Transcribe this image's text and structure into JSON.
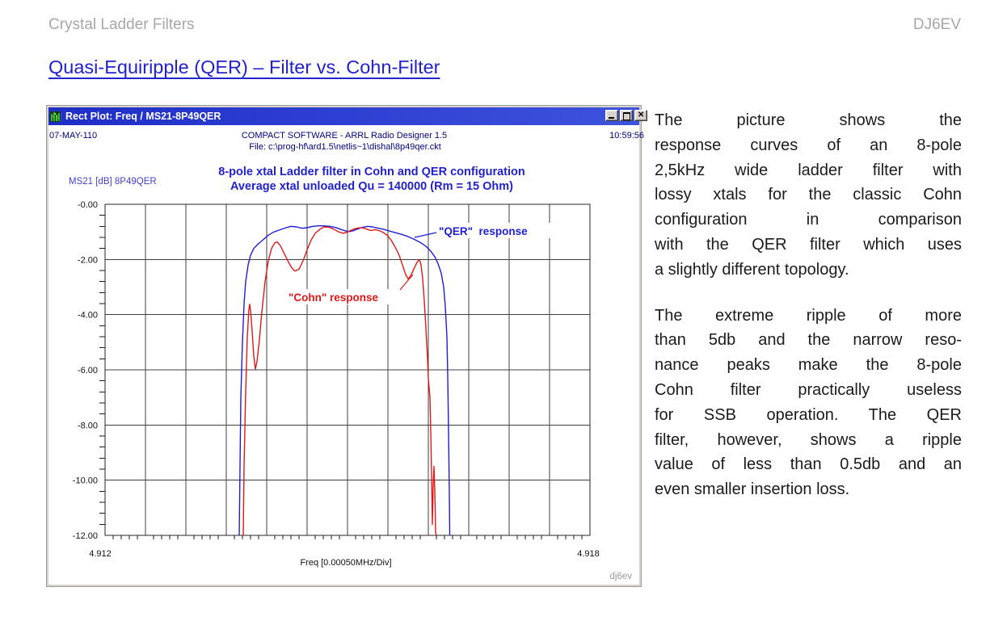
{
  "page": {
    "header_left": "Crystal Ladder Filters",
    "header_right": "DJ6EV",
    "heading": "Quasi-Equiripple (QER) – Filter vs. Cohn-Filter"
  },
  "app_window": {
    "title": "Rect Plot: Freq / MS21-8P49QER",
    "buttons": {
      "minimize": "minimize",
      "maximize": "maximize",
      "close": "close"
    },
    "header": {
      "date": "07-MAY-110",
      "software": "COMPACT SOFTWARE - ARRL Radio Designer 1.5",
      "file": "File: c:\\prog-hf\\ard1.5\\netlis~1\\dishal\\8p49qer.ckt",
      "time": "10:59:56"
    },
    "trace_label": "MS21 [dB] 8P49QER",
    "watermark": "dj6ev"
  },
  "chart_data": {
    "type": "line",
    "title": "8-pole xtal Ladder filter in Cohn and QER configuration",
    "subtitle": "Average xtal unloaded Qu = 140000 (Rm = 15 Ohm)",
    "xlabel": "Freq [0.00050MHz/Div]",
    "ylabel": "MS21 [dB]",
    "xlim": [
      4.912,
      4.918
    ],
    "ylim": [
      -12,
      0
    ],
    "x_divisions": 12,
    "y_divisions": 6,
    "minor_per_division": 5,
    "grid": true,
    "x_tick_labels": [
      "4.912",
      "4.918"
    ],
    "y_tick_labels": [
      "-0.00",
      "-2.00",
      "-4.00",
      "-6.00",
      "-8.00",
      "-10.00",
      "-12.00"
    ],
    "annotations": [
      {
        "text": "\"QER\"  response",
        "color": "#1e1ed2"
      },
      {
        "text": "\"Cohn\" response",
        "color": "#e01818"
      }
    ],
    "series": [
      {
        "name": "QER response",
        "color": "#1e1ed2",
        "points": [
          [
            4.91366,
            -12
          ],
          [
            4.91367,
            -9.5
          ],
          [
            4.91368,
            -7
          ],
          [
            4.9137,
            -5
          ],
          [
            4.91372,
            -3.6
          ],
          [
            4.91374,
            -2.8
          ],
          [
            4.91377,
            -2.2
          ],
          [
            4.9138,
            -1.85
          ],
          [
            4.91384,
            -1.6
          ],
          [
            4.91389,
            -1.45
          ],
          [
            4.91395,
            -1.3
          ],
          [
            4.91402,
            -1.12
          ],
          [
            4.91409,
            -1.0
          ],
          [
            4.91417,
            -0.92
          ],
          [
            4.91424,
            -0.85
          ],
          [
            4.9143,
            -0.8
          ],
          [
            4.91437,
            -0.82
          ],
          [
            4.91444,
            -0.87
          ],
          [
            4.9145,
            -0.85
          ],
          [
            4.91457,
            -0.8
          ],
          [
            4.91464,
            -0.78
          ],
          [
            4.91471,
            -0.78
          ],
          [
            4.91478,
            -0.8
          ],
          [
            4.91485,
            -0.84
          ],
          [
            4.91491,
            -0.9
          ],
          [
            4.91497,
            -0.96
          ],
          [
            4.91502,
            -0.99
          ],
          [
            4.91507,
            -0.96
          ],
          [
            4.91513,
            -0.89
          ],
          [
            4.91519,
            -0.83
          ],
          [
            4.91525,
            -0.8
          ],
          [
            4.91531,
            -0.82
          ],
          [
            4.91537,
            -0.86
          ],
          [
            4.91544,
            -0.9
          ],
          [
            4.91551,
            -0.96
          ],
          [
            4.91558,
            -1.02
          ],
          [
            4.91566,
            -1.08
          ],
          [
            4.91574,
            -1.16
          ],
          [
            4.91582,
            -1.26
          ],
          [
            4.9159,
            -1.38
          ],
          [
            4.91597,
            -1.52
          ],
          [
            4.91603,
            -1.7
          ],
          [
            4.91608,
            -1.9
          ],
          [
            4.91612,
            -2.15
          ],
          [
            4.91616,
            -2.5
          ],
          [
            4.91619,
            -3.0
          ],
          [
            4.91621,
            -3.7
          ],
          [
            4.91623,
            -4.8
          ],
          [
            4.91624,
            -6.2
          ],
          [
            4.91625,
            -8.2
          ],
          [
            4.91626,
            -10.5
          ],
          [
            4.916265,
            -12
          ]
        ]
      },
      {
        "name": "Cohn response",
        "color": "#e01818",
        "points": [
          [
            4.91371,
            -12
          ],
          [
            4.91372,
            -9.5
          ],
          [
            4.91374,
            -6.8
          ],
          [
            4.91376,
            -4.8
          ],
          [
            4.91378,
            -3.8
          ],
          [
            4.91379,
            -3.62
          ],
          [
            4.9138,
            -3.85
          ],
          [
            4.91382,
            -4.6
          ],
          [
            4.91384,
            -5.5
          ],
          [
            4.91386,
            -5.97
          ],
          [
            4.91388,
            -5.7
          ],
          [
            4.91391,
            -4.9
          ],
          [
            4.91394,
            -3.9
          ],
          [
            4.91398,
            -2.8
          ],
          [
            4.91402,
            -2.05
          ],
          [
            4.91406,
            -1.6
          ],
          [
            4.9141,
            -1.4
          ],
          [
            4.91413,
            -1.36
          ],
          [
            4.91417,
            -1.5
          ],
          [
            4.91422,
            -1.8
          ],
          [
            4.91427,
            -2.1
          ],
          [
            4.91431,
            -2.3
          ],
          [
            4.91435,
            -2.42
          ],
          [
            4.9144,
            -2.35
          ],
          [
            4.91445,
            -2.05
          ],
          [
            4.9145,
            -1.65
          ],
          [
            4.91455,
            -1.3
          ],
          [
            4.9146,
            -1.05
          ],
          [
            4.91466,
            -0.9
          ],
          [
            4.91471,
            -0.82
          ],
          [
            4.91477,
            -0.83
          ],
          [
            4.91483,
            -0.9
          ],
          [
            4.91489,
            -1.0
          ],
          [
            4.91495,
            -1.05
          ],
          [
            4.915,
            -1.0
          ],
          [
            4.91506,
            -0.92
          ],
          [
            4.91512,
            -0.86
          ],
          [
            4.91518,
            -0.85
          ],
          [
            4.91524,
            -0.9
          ],
          [
            4.91529,
            -0.95
          ],
          [
            4.91534,
            -0.92
          ],
          [
            4.91539,
            -0.95
          ],
          [
            4.91544,
            -1.02
          ],
          [
            4.91549,
            -1.12
          ],
          [
            4.91554,
            -1.3
          ],
          [
            4.91559,
            -1.55
          ],
          [
            4.91564,
            -1.85
          ],
          [
            4.91568,
            -2.2
          ],
          [
            4.91572,
            -2.55
          ],
          [
            4.91575,
            -2.7
          ],
          [
            4.91578,
            -2.6
          ],
          [
            4.91582,
            -2.35
          ],
          [
            4.91586,
            -2.1
          ],
          [
            4.91589,
            -2.0
          ],
          [
            4.91591,
            -2.2
          ],
          [
            4.91593,
            -2.7
          ],
          [
            4.91595,
            -3.5
          ],
          [
            4.91597,
            -4.5
          ],
          [
            4.91599,
            -5.6
          ],
          [
            4.916,
            -6.3
          ],
          [
            4.91602,
            -7.0
          ],
          [
            4.91603,
            -8.2
          ],
          [
            4.91604,
            -9.8
          ],
          [
            4.91605,
            -11.6
          ],
          [
            4.91606,
            -10.2
          ],
          [
            4.91607,
            -9.5
          ],
          [
            4.91608,
            -10.4
          ],
          [
            4.91609,
            -11.9
          ],
          [
            4.9161,
            -12
          ]
        ]
      }
    ]
  },
  "side_text": {
    "para1_lines": [
      "The picture shows the",
      "response curves of an 8-pole",
      "2,5kHz wide ladder filter with",
      "lossy xtals for the classic Cohn",
      "configuration in comparison",
      "with the QER filter which uses",
      "a slightly different topology."
    ],
    "para2_lines": [
      "The extreme ripple of more",
      "than 5db and the narrow reso-",
      "nance peaks make the 8-pole",
      "Cohn filter practically useless",
      "for SSB operation. The QER",
      "filter, however, shows a ripple",
      "value of less than 0.5db and an",
      "even smaller insertion loss."
    ]
  }
}
